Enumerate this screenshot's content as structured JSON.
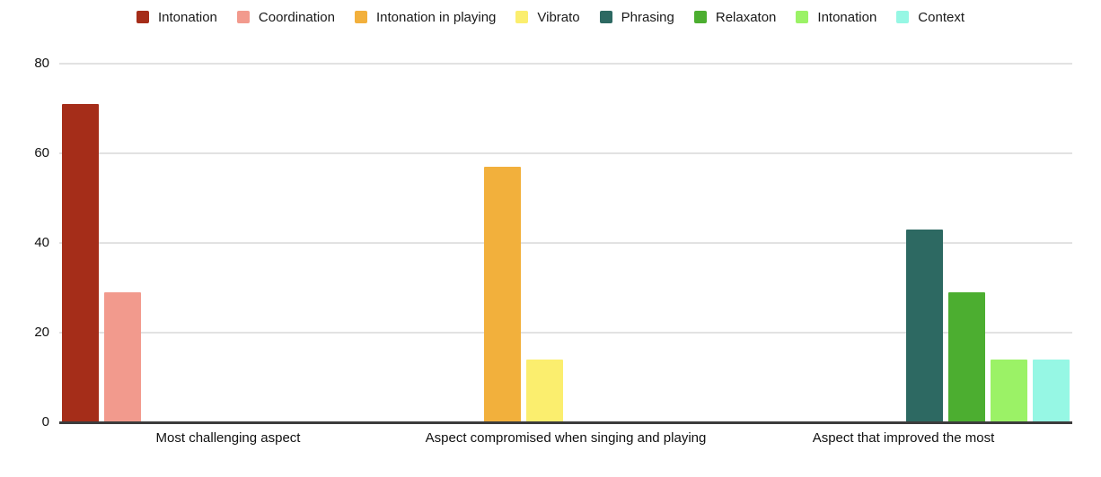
{
  "chart_data": {
    "type": "bar",
    "title": "",
    "categories": [
      "Most challenging aspect",
      "Aspect compromised when singing and playing",
      "Aspect that improved the most"
    ],
    "series": [
      {
        "name": "Intonation",
        "color": "#A52D19",
        "values": [
          71,
          0,
          0
        ]
      },
      {
        "name": "Coordination",
        "color": "#F29A8D",
        "values": [
          29,
          0,
          0
        ]
      },
      {
        "name": "Intonation in playing",
        "color": "#F2B03C",
        "values": [
          0,
          57,
          0
        ]
      },
      {
        "name": "Vibrato",
        "color": "#FBEE6E",
        "values": [
          0,
          14,
          0
        ]
      },
      {
        "name": "Phrasing",
        "color": "#2D6962",
        "values": [
          0,
          0,
          43
        ]
      },
      {
        "name": "Relaxaton",
        "color": "#4CAE30",
        "values": [
          0,
          0,
          29
        ]
      },
      {
        "name": "Intonation",
        "color": "#9BF266",
        "values": [
          0,
          0,
          14
        ]
      },
      {
        "name": "Context",
        "color": "#96F7E4",
        "values": [
          0,
          0,
          14
        ]
      }
    ],
    "ylim": [
      0,
      80
    ],
    "yticks": [
      0,
      20,
      40,
      60,
      80
    ],
    "grid": true,
    "legend_position": "top",
    "axis_color": "#3c3c3c",
    "gridline_color": "#e2e2e2"
  }
}
